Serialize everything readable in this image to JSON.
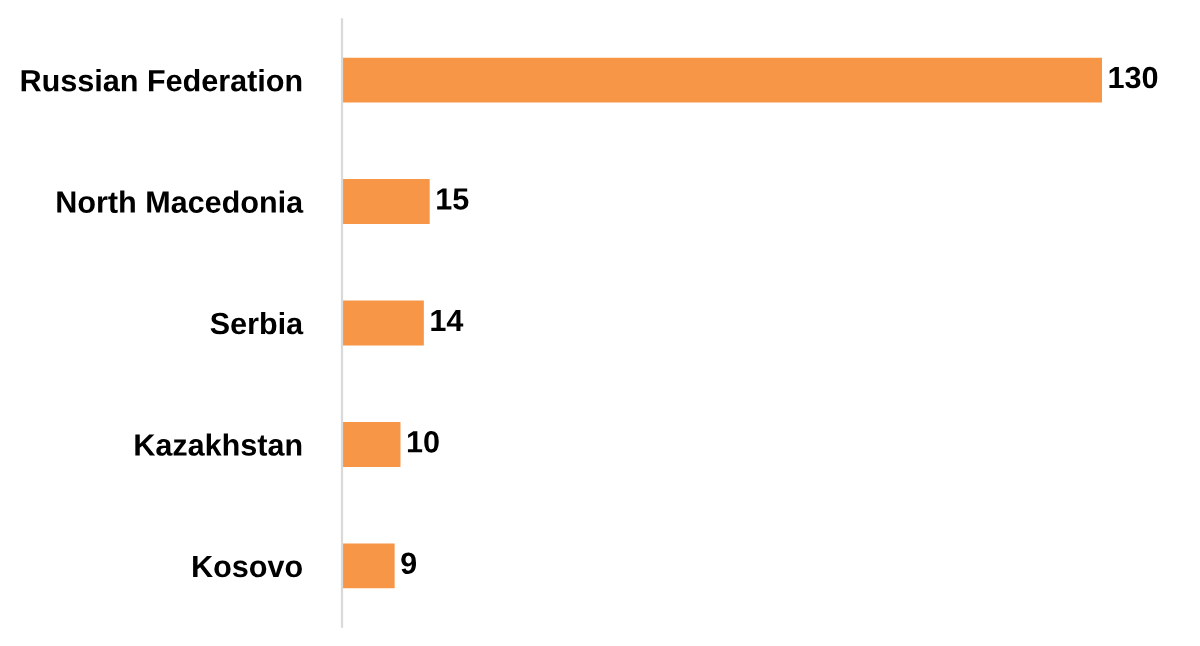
{
  "chart_data": {
    "type": "bar",
    "orientation": "horizontal",
    "categories": [
      "Russian Federation",
      "North Macedonia",
      "Serbia",
      "Kazakhstan",
      "Kosovo"
    ],
    "values": [
      130,
      15,
      14,
      10,
      9
    ],
    "color": "#f79646",
    "data_labels": true,
    "grid": false,
    "legend": false,
    "tick_labels": "y"
  }
}
